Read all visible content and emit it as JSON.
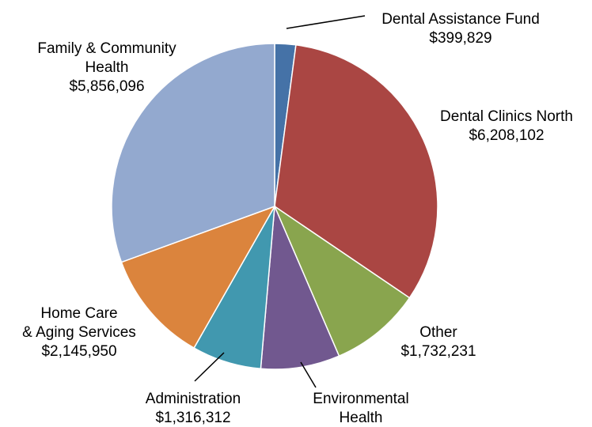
{
  "chart_data": {
    "type": "pie",
    "slices": [
      {
        "name": "Dental Assistance Fund",
        "lines": [
          "Dental Assistance Fund",
          "$399,829"
        ],
        "value": 399829,
        "color": "#4572A7"
      },
      {
        "name": "Dental Clinics North",
        "lines": [
          "Dental Clinics North",
          "$6,208,102"
        ],
        "value": 6208102,
        "color": "#AA4643"
      },
      {
        "name": "Other",
        "lines": [
          "Other",
          "$1,732,231"
        ],
        "value": 1732231,
        "color": "#89A54E"
      },
      {
        "name": "Environmental Health",
        "lines": [
          "Environmental",
          "Health"
        ],
        "value": 1500000,
        "color": "#71588F"
      },
      {
        "name": "Administration",
        "lines": [
          "Administration",
          "$1,316,312"
        ],
        "value": 1316312,
        "color": "#4198AF"
      },
      {
        "name": "Home Care & Aging Services",
        "lines": [
          "Home Care",
          "& Aging Services",
          "$2,145,950"
        ],
        "value": 2145950,
        "color": "#DB843D"
      },
      {
        "name": "Family & Community Health",
        "lines": [
          "Family & Community",
          "Health",
          "$5,856,096"
        ],
        "value": 5856096,
        "color": "#93A9CF"
      }
    ],
    "start_angle": "12 o'clock",
    "direction": "clockwise",
    "legend": "none"
  }
}
